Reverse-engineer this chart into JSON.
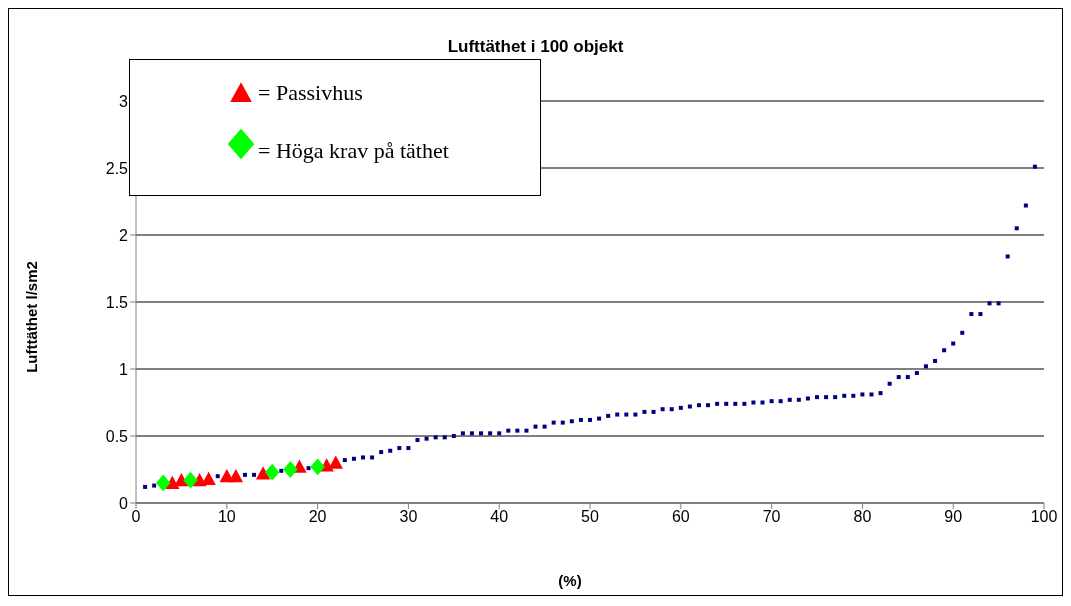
{
  "chart_data": {
    "type": "scatter",
    "title": "Lufttäthet i 100 objekt",
    "xlabel": "(%)",
    "ylabel": "Lufttäthet l/sm2",
    "xlim": [
      0,
      100
    ],
    "xticks": [
      0,
      10,
      20,
      30,
      40,
      50,
      60,
      70,
      80,
      90,
      100
    ],
    "ylim": [
      0,
      3
    ],
    "yticks": [
      0,
      0.5,
      1,
      1.5,
      2,
      2.5,
      3
    ],
    "grid": "y",
    "legend": "top left",
    "series": [
      {
        "color": "#000080",
        "marker": "square",
        "x": [
          1,
          2,
          9,
          12,
          13,
          16,
          19,
          23,
          24,
          25,
          26,
          27,
          28,
          29,
          30,
          31,
          32,
          33,
          34,
          35,
          36,
          37,
          38,
          39,
          40,
          41,
          42,
          43,
          44,
          45,
          46,
          47,
          48,
          49,
          50,
          51,
          52,
          53,
          54,
          55,
          56,
          57,
          58,
          59,
          60,
          61,
          62,
          63,
          64,
          65,
          66,
          67,
          68,
          69,
          70,
          71,
          72,
          73,
          74,
          75,
          76,
          77,
          78,
          79,
          80,
          81,
          82,
          83,
          84,
          85,
          86,
          87,
          88,
          89,
          90,
          91,
          92,
          93,
          94,
          95,
          96,
          97,
          98,
          99
        ],
        "values": [
          0.12,
          0.13,
          0.2,
          0.21,
          0.21,
          0.24,
          0.26,
          0.32,
          0.33,
          0.34,
          0.34,
          0.38,
          0.39,
          0.41,
          0.41,
          0.47,
          0.48,
          0.49,
          0.49,
          0.5,
          0.52,
          0.52,
          0.52,
          0.52,
          0.52,
          0.54,
          0.54,
          0.54,
          0.57,
          0.57,
          0.6,
          0.6,
          0.61,
          0.62,
          0.62,
          0.63,
          0.65,
          0.66,
          0.66,
          0.66,
          0.68,
          0.68,
          0.7,
          0.7,
          0.71,
          0.72,
          0.73,
          0.73,
          0.74,
          0.74,
          0.74,
          0.74,
          0.75,
          0.75,
          0.76,
          0.76,
          0.77,
          0.77,
          0.78,
          0.79,
          0.79,
          0.79,
          0.8,
          0.8,
          0.81,
          0.81,
          0.82,
          0.89,
          0.94,
          0.94,
          0.97,
          1.02,
          1.06,
          1.14,
          1.19,
          1.27,
          1.41,
          1.41,
          1.49,
          1.49,
          1.84,
          2.05,
          2.22,
          2.51
        ]
      },
      {
        "name": "= Passivhus",
        "color": "#ff0000",
        "marker": "triangle",
        "x": [
          4,
          5,
          7,
          8,
          10,
          11,
          14,
          18,
          21,
          22
        ],
        "values": [
          0.15,
          0.17,
          0.17,
          0.18,
          0.2,
          0.2,
          0.22,
          0.27,
          0.28,
          0.3
        ]
      },
      {
        "name": "= Höga krav på täthet",
        "color": "#00ff00",
        "marker": "diamond",
        "x": [
          3,
          6,
          15,
          17,
          20
        ],
        "values": [
          0.15,
          0.17,
          0.23,
          0.25,
          0.27
        ]
      }
    ]
  }
}
